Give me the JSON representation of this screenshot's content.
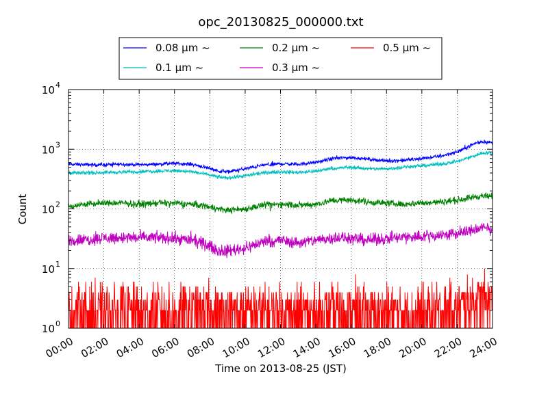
{
  "chart_data": {
    "type": "line",
    "title": "opc_20130825_000000.txt",
    "xlabel": "Time on 2013-08-25 (JST)",
    "ylabel": "Count",
    "yscale": "log",
    "xlim": [
      "00:00",
      "24:00"
    ],
    "ylim": [
      1,
      10000
    ],
    "grid": true,
    "legend_placement": "top-center",
    "x_ticks": [
      "00:00",
      "02:00",
      "04:00",
      "06:00",
      "08:00",
      "10:00",
      "12:00",
      "14:00",
      "16:00",
      "18:00",
      "20:00",
      "22:00",
      "24:00"
    ],
    "y_ticks": [
      {
        "base": "10",
        "exp": "0",
        "value": 1
      },
      {
        "base": "10",
        "exp": "1",
        "value": 10
      },
      {
        "base": "10",
        "exp": "2",
        "value": 100
      },
      {
        "base": "10",
        "exp": "3",
        "value": 1000
      },
      {
        "base": "10",
        "exp": "4",
        "value": 10000
      }
    ],
    "x_hours": [
      0,
      1,
      2,
      3,
      4,
      5,
      6,
      7,
      8,
      8.5,
      9,
      10,
      11,
      12,
      13,
      14,
      15,
      16,
      17,
      18,
      19,
      20,
      21,
      22,
      23,
      23.5,
      24
    ],
    "series": [
      {
        "name": "0.08 μm ~",
        "color": "#0000ff",
        "noise": 0.06,
        "values": [
          560,
          550,
          550,
          560,
          550,
          560,
          580,
          560,
          480,
          430,
          420,
          470,
          540,
          570,
          560,
          600,
          700,
          730,
          680,
          640,
          650,
          700,
          760,
          900,
          1250,
          1350,
          1280
        ]
      },
      {
        "name": "0.1 μm ~",
        "color": "#00bfbf",
        "noise": 0.06,
        "values": [
          400,
          400,
          410,
          410,
          420,
          430,
          440,
          420,
          370,
          340,
          330,
          360,
          400,
          420,
          410,
          430,
          480,
          500,
          470,
          470,
          500,
          530,
          560,
          620,
          780,
          880,
          850
        ]
      },
      {
        "name": "0.2 μm ~",
        "color": "#008000",
        "noise": 0.11,
        "values": [
          110,
          120,
          125,
          125,
          120,
          125,
          125,
          120,
          110,
          100,
          95,
          100,
          115,
          120,
          115,
          120,
          140,
          140,
          130,
          125,
          120,
          125,
          130,
          140,
          160,
          165,
          155
        ]
      },
      {
        "name": "0.3 μm ~",
        "color": "#bf00bf",
        "noise": 0.2,
        "values": [
          30,
          30,
          33,
          33,
          33,
          33,
          32,
          30,
          24,
          20,
          20,
          22,
          28,
          30,
          27,
          30,
          33,
          32,
          30,
          32,
          33,
          35,
          36,
          38,
          45,
          48,
          45
        ]
      },
      {
        "name": "0.5 μm ~",
        "color": "#ff0000",
        "noise": 0,
        "values": [
          2,
          2,
          2,
          2,
          2,
          2,
          2,
          2,
          2,
          2,
          2,
          2,
          2,
          2,
          2,
          2,
          2,
          2,
          2,
          2,
          2,
          2,
          2,
          2.5,
          3,
          3.5,
          3
        ]
      }
    ]
  }
}
